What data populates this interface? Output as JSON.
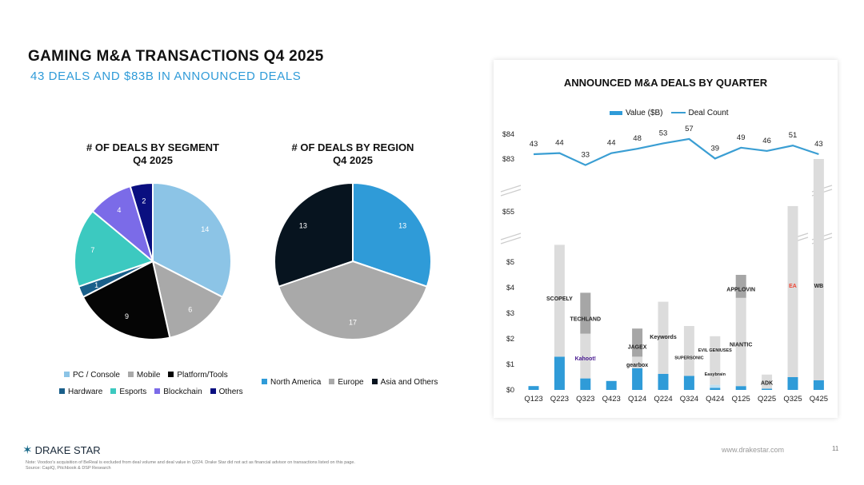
{
  "header": {
    "title": "GAMING M&A TRANSACTIONS Q4 2025",
    "subtitle": "43 DEALS AND $83B IN ANNOUNCED DEALS"
  },
  "footer": {
    "brand": "DRAKE STAR",
    "note": "Note: Voodoo's acquisition of BeReal is excluded from deal volume and deal value in Q224. Drake Star did not act as financial advisor on transactions listed on this page.",
    "source": "Source: CapIQ, Pitchbook & DSP Research",
    "url": "www.drakestar.com",
    "page": "11"
  },
  "chart_data": [
    {
      "type": "pie",
      "title": "# OF DEALS BY SEGMENT",
      "subtitle": "Q4 2025",
      "labels": [
        "PC / Console",
        "Mobile",
        "Platform/Tools",
        "Hardware",
        "Esports",
        "Blockchain",
        "Others"
      ],
      "values": [
        14,
        6,
        9,
        1,
        7,
        4,
        2
      ],
      "colors": [
        "#8cc4e6",
        "#a9a9a9",
        "#050505",
        "#1a5f8a",
        "#3cc9c0",
        "#7b6be8",
        "#0a0f80"
      ]
    },
    {
      "type": "pie",
      "title": "# OF DEALS BY REGION",
      "subtitle": "Q4 2025",
      "labels": [
        "North America",
        "Europe",
        "Asia and Others"
      ],
      "values": [
        13,
        17,
        13
      ],
      "colors": [
        "#2f9bd8",
        "#a9a9a9",
        "#07141f"
      ]
    },
    {
      "type": "bar+line",
      "title": "ANNOUNCED M&A DEALS BY QUARTER",
      "legend": [
        "Value ($B)",
        "Deal Count"
      ],
      "categories": [
        "Q123",
        "Q223",
        "Q323",
        "Q423",
        "Q124",
        "Q224",
        "Q324",
        "Q424",
        "Q125",
        "Q225",
        "Q325",
        "Q425"
      ],
      "yticks": [
        "$0",
        "$1",
        "$2",
        "$3",
        "$4",
        "$5",
        "$55",
        "$83",
        "$84"
      ],
      "ytick_values": [
        0,
        1,
        2,
        3,
        4,
        5,
        55,
        83,
        84
      ],
      "axis_breaks": [
        "$5-$55",
        "$55-$83"
      ],
      "value_segments": [
        [
          [
            0.15,
            "blue"
          ]
        ],
        [
          [
            1.3,
            "blue"
          ],
          [
            4.9,
            "light"
          ]
        ],
        [
          [
            0.45,
            "blue"
          ],
          [
            1.75,
            "light"
          ],
          [
            1.6,
            "dark"
          ]
        ],
        [
          [
            0.35,
            "blue"
          ]
        ],
        [
          [
            0.85,
            "blue"
          ],
          [
            0.45,
            "light"
          ],
          [
            1.1,
            "dark"
          ]
        ],
        [
          [
            0.63,
            "blue"
          ],
          [
            2.82,
            "light"
          ]
        ],
        [
          [
            0.55,
            "blue"
          ],
          [
            1.95,
            "light"
          ]
        ],
        [
          [
            0.08,
            "blue"
          ],
          [
            0.12,
            "paleblue"
          ],
          [
            1.9,
            "light"
          ]
        ],
        [
          [
            0.15,
            "blue"
          ],
          [
            3.45,
            "light"
          ],
          [
            0.9,
            "dark"
          ]
        ],
        [
          [
            0.05,
            "blue"
          ],
          [
            0.55,
            "light"
          ]
        ],
        [
          [
            0.5,
            "blue"
          ],
          [
            57.5,
            "light"
          ]
        ],
        [
          [
            0.38,
            "blue"
          ],
          [
            82.62,
            "light"
          ]
        ]
      ],
      "deal_count": [
        43,
        44,
        33,
        44,
        48,
        53,
        57,
        39,
        49,
        46,
        51,
        43
      ],
      "colors": {
        "blue": "#2f9bd8",
        "light": "#dcdcdc",
        "dark": "#a6a6a6",
        "paleblue": "#bfe0f2",
        "line": "#3a9ed3"
      },
      "logos": [
        {
          "q": "Q223",
          "text": "SCOPELY",
          "v": 3.6
        },
        {
          "q": "Q323",
          "text": "TECHLAND",
          "v": 2.8
        },
        {
          "q": "Q323",
          "text": "Kahoot!",
          "v": 1.25
        },
        {
          "q": "Q124",
          "text": "JAGEX",
          "v": 1.7
        },
        {
          "q": "Q124",
          "text": "gearbox",
          "v": 1.0
        },
        {
          "q": "Q224",
          "text": "Keywords",
          "v": 2.1
        },
        {
          "q": "Q324",
          "text": "SUPERSONIC",
          "v": 1.3
        },
        {
          "q": "Q424",
          "text": "EVIL GENIUSES",
          "v": 1.6
        },
        {
          "q": "Q424",
          "text": "Easybrain",
          "v": 0.65
        },
        {
          "q": "Q125",
          "text": "APPLOVIN",
          "v": 3.95
        },
        {
          "q": "Q125",
          "text": "NIANTIC",
          "v": 1.8
        },
        {
          "q": "Q225",
          "text": "ADK",
          "v": 0.3
        },
        {
          "q": "Q325",
          "text": "EA",
          "v": 4.1
        },
        {
          "q": "Q425",
          "text": "WB",
          "v": 4.1
        }
      ]
    }
  ]
}
